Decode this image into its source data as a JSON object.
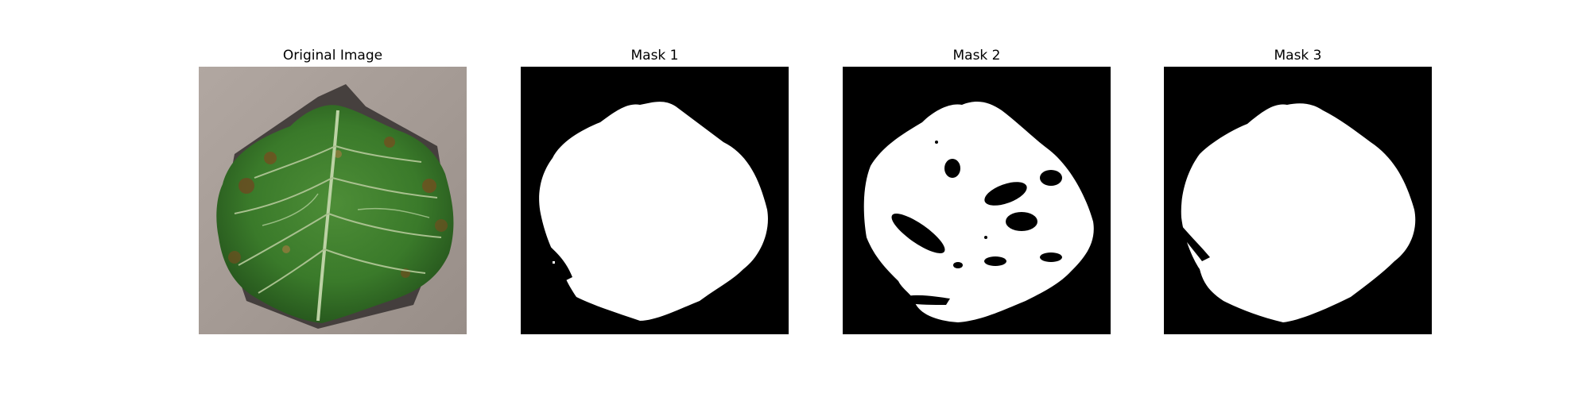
{
  "panels": [
    {
      "title": "Original Image"
    },
    {
      "title": "Mask 1"
    },
    {
      "title": "Mask 2"
    },
    {
      "title": "Mask 3"
    }
  ],
  "colors": {
    "background": "#ffffff",
    "mask_background": "#000000",
    "mask_foreground": "#ffffff",
    "photo_background": "#a49a95",
    "leaf_green": "#3e7b2c",
    "leaf_dark": "#24521c",
    "vein": "#b7c9a2",
    "lesion_brown": "#7a4a1e"
  },
  "icons": [
    "leaf-photo",
    "mask-image"
  ]
}
